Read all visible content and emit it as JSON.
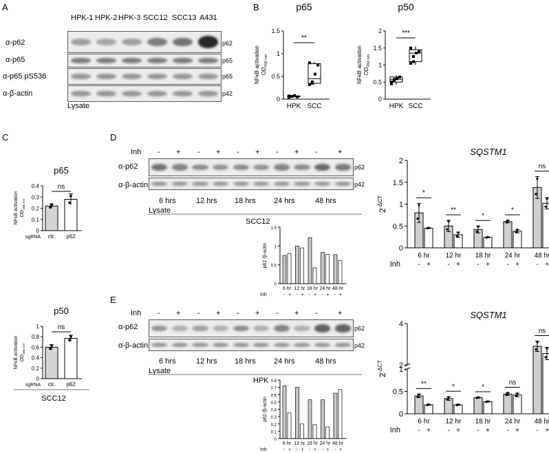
{
  "panels": {
    "A": "A",
    "B": "B",
    "C": "C",
    "D": "D",
    "E": "E"
  },
  "panel_a": {
    "lanes": [
      "HPK-1",
      "HPK-2",
      "HPK-3",
      "SCC12",
      "SCC13",
      "A431"
    ],
    "row_labels": [
      "α-p62",
      "α-p65",
      "α-p65 pS536",
      "α-β-actin"
    ],
    "right_markers": [
      "p62",
      "p65",
      "p65",
      "p42"
    ],
    "footer": "Lysate",
    "intensities": [
      [
        0.25,
        0.2,
        0.25,
        0.45,
        0.5,
        0.95
      ],
      [
        0.45,
        0.45,
        0.45,
        0.45,
        0.45,
        0.45
      ],
      [
        0.3,
        0.3,
        0.3,
        0.3,
        0.3,
        0.3
      ],
      [
        0.3,
        0.3,
        0.3,
        0.3,
        0.3,
        0.3
      ]
    ]
  },
  "panel_d_blot": {
    "inh_label": "Inh",
    "signs": [
      "-",
      "+",
      "-",
      "+",
      "-",
      "+",
      "-",
      "+",
      "-",
      "+"
    ],
    "row_labels": [
      "α-p62",
      "α-β-actin"
    ],
    "right_markers": [
      "p62",
      "p42"
    ],
    "groups": [
      "6 hrs",
      "12 hrs",
      "18 hrs",
      "24 hrs",
      "48 hrs"
    ],
    "footer": "Lysate",
    "cell_line": "SCC12",
    "intensities": [
      [
        0.5,
        0.4,
        0.35,
        0.3,
        0.35,
        0.3,
        0.4,
        0.35,
        0.55,
        0.45
      ],
      [
        0.3,
        0.3,
        0.3,
        0.3,
        0.3,
        0.3,
        0.3,
        0.3,
        0.3,
        0.3
      ]
    ]
  },
  "panel_e_blot": {
    "inh_label": "Inh",
    "signs": [
      "-",
      "+",
      "-",
      "+",
      "-",
      "+",
      "-",
      "+",
      "-",
      "+"
    ],
    "row_labels": [
      "α-p62",
      "α-β-actin"
    ],
    "right_markers": [
      "p62",
      "p42"
    ],
    "groups": [
      "6 hrs",
      "12 hrs",
      "18 hrs",
      "24 hrs",
      "48 hrs"
    ],
    "footer": "Lysate",
    "cell_line": "HPK",
    "intensities": [
      [
        0.3,
        0.15,
        0.25,
        0.15,
        0.35,
        0.15,
        0.4,
        0.15,
        0.6,
        0.6
      ],
      [
        0.3,
        0.3,
        0.3,
        0.3,
        0.3,
        0.3,
        0.3,
        0.3,
        0.3,
        0.3
      ]
    ]
  },
  "texts": {
    "nfkb": "NFκB activation",
    "od": "OD",
    "od_sub": "450 nm",
    "ratio": "p62 /β-actin",
    "dct_base": "2",
    "dct_exp": "-ΔCT",
    "sgrna": "sgRNA",
    "inh": "Inh",
    "minus": "-",
    "plus": "+"
  },
  "chart_data": [
    {
      "id": "B-p65",
      "type": "box",
      "title": "p65",
      "categories": [
        "HPK",
        "SCC"
      ],
      "ylim": [
        0,
        1.5
      ],
      "yticks": [
        0,
        0.5,
        1.0,
        1.5
      ],
      "points": [
        [
          0.04,
          0.06,
          0.08,
          0.05,
          0.07
        ],
        [
          0.32,
          0.38,
          0.55,
          0.75,
          0.8,
          0.35
        ]
      ],
      "box": [
        {
          "min": 0.04,
          "q1": 0.05,
          "median": 0.06,
          "q3": 0.07,
          "max": 0.08
        },
        {
          "min": 0.32,
          "q1": 0.35,
          "median": 0.45,
          "q3": 0.78,
          "max": 0.82
        }
      ],
      "significance": "**"
    },
    {
      "id": "B-p50",
      "type": "box",
      "title": "p50",
      "categories": [
        "HPK",
        "SCC"
      ],
      "ylim": [
        0,
        2.0
      ],
      "yticks": [
        0,
        0.5,
        1.0,
        1.5,
        2.0
      ],
      "points": [
        [
          0.45,
          0.55,
          0.6,
          0.65,
          0.5,
          0.58
        ],
        [
          1.05,
          1.25,
          1.35,
          1.4,
          1.5,
          1.1
        ]
      ],
      "box": [
        {
          "min": 0.42,
          "q1": 0.5,
          "median": 0.58,
          "q3": 0.65,
          "max": 0.7
        },
        {
          "min": 1.0,
          "q1": 1.1,
          "median": 1.35,
          "q3": 1.45,
          "max": 1.55
        }
      ],
      "significance": "***"
    },
    {
      "id": "C-p65",
      "type": "bar",
      "title": "p65",
      "categories": [
        "ctr.",
        "p62"
      ],
      "values": [
        0.22,
        0.28
      ],
      "errors": [
        0.02,
        0.05
      ],
      "ylim": [
        0,
        0.4
      ],
      "yticks": [
        0,
        0.1,
        0.2,
        0.3,
        0.4
      ],
      "significance": "ns",
      "footer": "SCC12"
    },
    {
      "id": "C-p50",
      "type": "bar",
      "title": "p50",
      "categories": [
        "ctr.",
        "p62"
      ],
      "values": [
        0.6,
        0.77
      ],
      "errors": [
        0.05,
        0.06
      ],
      "ylim": [
        0,
        1.0
      ],
      "yticks": [
        0,
        0.2,
        0.4,
        0.6,
        0.8,
        1.0
      ],
      "significance": "ns"
    },
    {
      "id": "D-quant",
      "type": "bar",
      "categories": [
        "6 hr",
        "12 hr",
        "18 hr",
        "24 hr",
        "48 hr"
      ],
      "ylim": [
        0,
        1.5
      ],
      "yticks": [
        0,
        0.5,
        1.0,
        1.5
      ],
      "series": [
        {
          "values": [
            0.75,
            1.0,
            1.22,
            0.83,
            0.77
          ]
        },
        {
          "values": [
            0.8,
            0.95,
            0.42,
            0.78,
            0.62
          ]
        }
      ]
    },
    {
      "id": "D-qpcr",
      "type": "bar",
      "title": "SQSTM1",
      "categories": [
        "6 hr",
        "12 hr",
        "18 hr",
        "24 hr",
        "48 hr"
      ],
      "ylim": [
        0,
        2.0
      ],
      "yticks": [
        0,
        0.5,
        1.0,
        1.5,
        2.0
      ],
      "series": [
        {
          "values": [
            0.8,
            0.5,
            0.42,
            0.6,
            1.38
          ],
          "errors": [
            0.22,
            0.13,
            0.08,
            0.03,
            0.25
          ]
        },
        {
          "values": [
            0.45,
            0.3,
            0.24,
            0.38,
            1.02
          ],
          "errors": [
            0.01,
            0.06,
            0.01,
            0.04,
            0.13
          ]
        }
      ],
      "significance": [
        "*",
        "**",
        "*",
        "*",
        "ns"
      ]
    },
    {
      "id": "E-quant",
      "type": "bar",
      "categories": [
        "6 hr",
        "12 hr",
        "18 hr",
        "24 hr",
        "48 hr"
      ],
      "ylim": [
        0,
        0.8
      ],
      "yticks": [
        0,
        0.1,
        0.2,
        0.3,
        0.4,
        0.5,
        0.6,
        0.7,
        0.8
      ],
      "series": [
        {
          "values": [
            0.72,
            0.7,
            0.53,
            0.53,
            0.62
          ]
        },
        {
          "values": [
            0.35,
            0.2,
            0.19,
            0.16,
            0.67
          ]
        }
      ]
    },
    {
      "id": "E-qpcr",
      "type": "bar",
      "title": "SQSTM1",
      "categories": [
        "6 hr",
        "12 hr",
        "18 hr",
        "24 hr",
        "48 hr"
      ],
      "ylim": [
        0,
        4
      ],
      "yticks": [
        0,
        0.5,
        1.0,
        2,
        4
      ],
      "series": [
        {
          "values": [
            0.4,
            0.34,
            0.36,
            0.44,
            2.9
          ],
          "errors": [
            0.04,
            0.04,
            0.01,
            0.03,
            0.25
          ]
        },
        {
          "values": [
            0.2,
            0.2,
            0.27,
            0.42,
            2.55
          ],
          "errors": [
            0.01,
            0.01,
            0.01,
            0.04,
            0.3
          ]
        }
      ],
      "significance": [
        "**",
        "*",
        "*",
        "ns",
        "ns"
      ]
    }
  ]
}
